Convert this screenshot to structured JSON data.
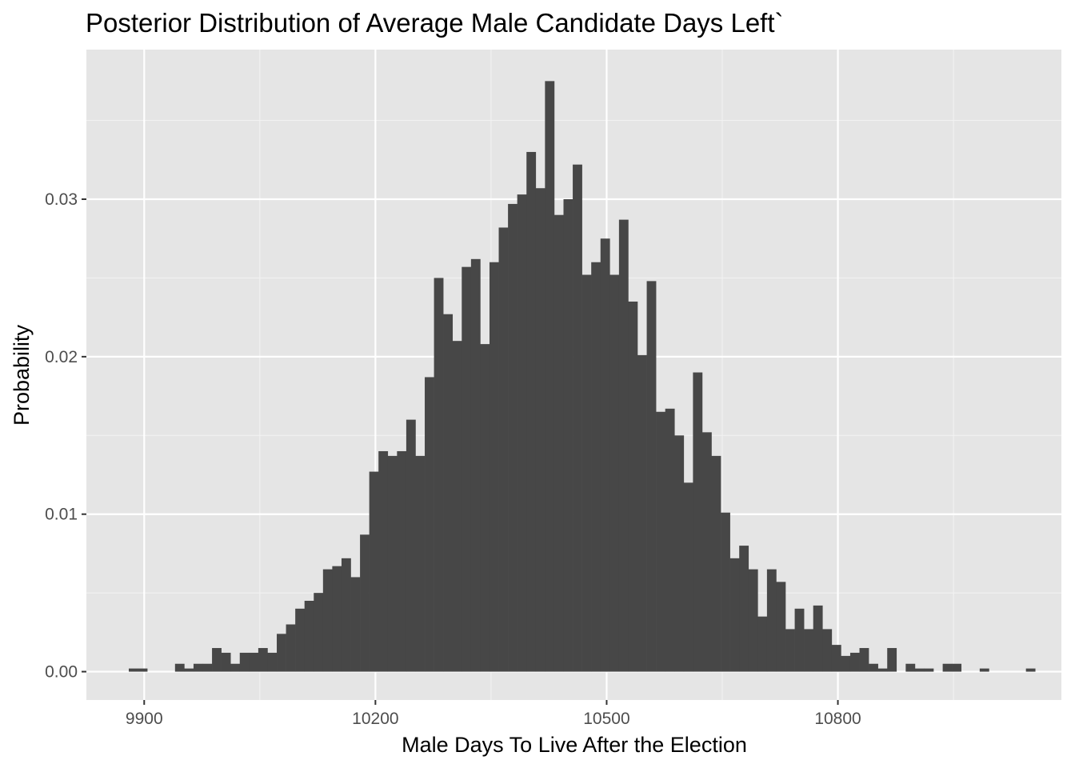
{
  "chart_data": {
    "type": "bar",
    "subtype": "histogram",
    "title": "Posterior Distribution of Average Male Candidate Days Left`",
    "xlabel": "Male Days To Live After the Election",
    "ylabel": "Probability",
    "xlim": [
      9825,
      11090
    ],
    "ylim": [
      -0.0018,
      0.0395
    ],
    "xticks": [
      9900,
      10200,
      10500,
      10800
    ],
    "xtick_labels": [
      "9900",
      "10200",
      "10500",
      "10800"
    ],
    "yticks": [
      0.0,
      0.01,
      0.02,
      0.03
    ],
    "ytick_labels": [
      "0.00",
      "0.01",
      "0.02",
      "0.03"
    ],
    "minor_x_gridlines": [
      9750,
      10050,
      10350,
      10650,
      10950
    ],
    "minor_y_gridlines": [
      0.005,
      0.015,
      0.025,
      0.035
    ],
    "background": "#e5e5e5",
    "bar_color": "#474747",
    "grid": true,
    "bin_width": 12,
    "bin_start": 9880,
    "values": [
      0.0002,
      0.0002,
      0,
      0,
      0,
      0.0005,
      0.0002,
      0.0005,
      0.0005,
      0.0015,
      0.0012,
      0.0005,
      0.0012,
      0.0012,
      0.0015,
      0.0012,
      0.0024,
      0.003,
      0.004,
      0.0045,
      0.005,
      0.0065,
      0.0067,
      0.0072,
      0.006,
      0.0087,
      0.0127,
      0.014,
      0.0137,
      0.014,
      0.016,
      0.0137,
      0.0187,
      0.025,
      0.0227,
      0.021,
      0.0257,
      0.0262,
      0.0208,
      0.026,
      0.0282,
      0.0297,
      0.0303,
      0.033,
      0.0307,
      0.0375,
      0.029,
      0.03,
      0.0322,
      0.0252,
      0.026,
      0.0275,
      0.0252,
      0.0287,
      0.0235,
      0.0201,
      0.0248,
      0.0165,
      0.0167,
      0.015,
      0.012,
      0.019,
      0.0152,
      0.0137,
      0.0101,
      0.0072,
      0.008,
      0.0065,
      0.0035,
      0.0065,
      0.0057,
      0.0027,
      0.004,
      0.0027,
      0.0042,
      0.0027,
      0.0017,
      0.001,
      0.0012,
      0.0015,
      0.0005,
      0.0002,
      0.0015,
      0,
      0.0005,
      0.0002,
      0.0002,
      0,
      0.0005,
      0.0005,
      0,
      0,
      0.0002,
      0,
      0,
      0,
      0,
      0.0002
    ]
  }
}
